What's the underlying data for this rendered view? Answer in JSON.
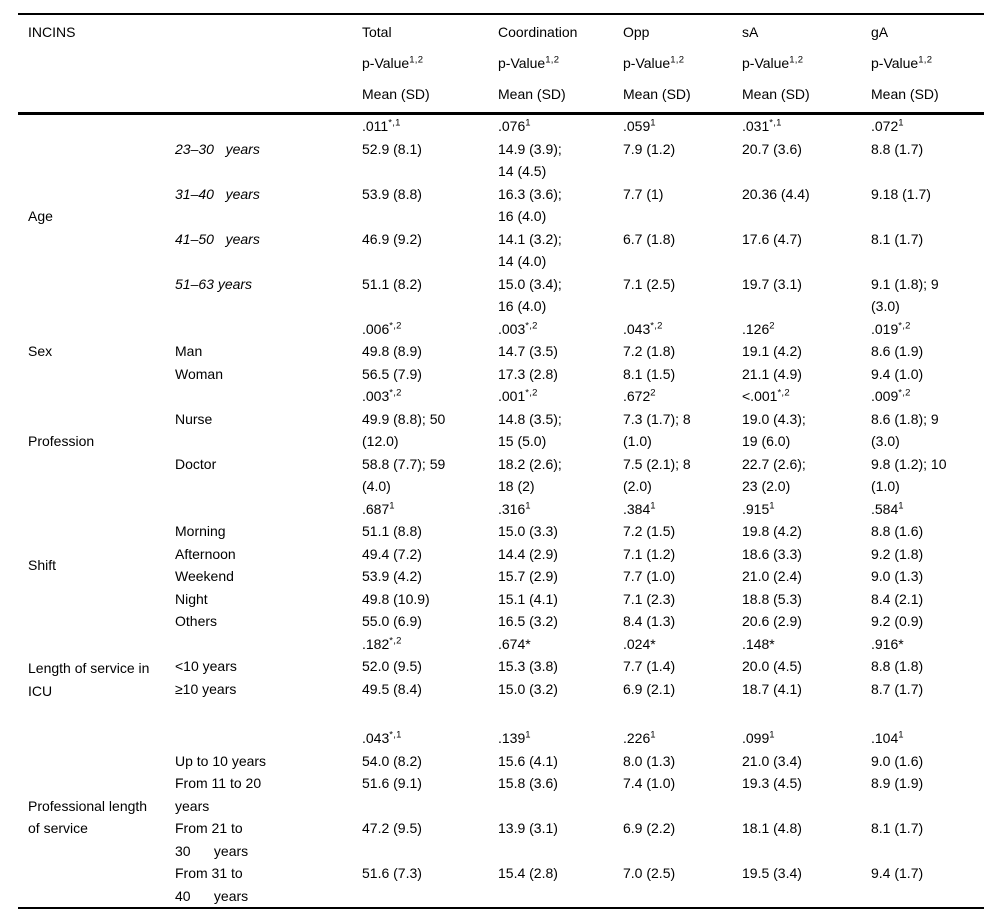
{
  "table": {
    "corner_label": "INCINS",
    "header": {
      "p_value_label": "p-Value",
      "p_value_sup": "1,2",
      "mean_label": "Mean (SD)"
    },
    "columns": [
      {
        "label": "Total"
      },
      {
        "label": "Coordination"
      },
      {
        "label": "Opp"
      },
      {
        "label": "sA"
      },
      {
        "label": "gA"
      }
    ],
    "groups": [
      {
        "label": "Age",
        "rows": [
          {
            "type": "p",
            "pcells": [
              {
                "v": ".011",
                "sup": "*,1"
              },
              {
                "v": ".076",
                "sup": "1"
              },
              {
                "v": ".059",
                "sup": "1"
              },
              {
                "v": ".031",
                "sup": "*,1"
              },
              {
                "v": ".072",
                "sup": "1"
              }
            ]
          },
          {
            "type": "data",
            "italic": true,
            "label": "23–30   years",
            "cells": [
              "52.9 (8.1)",
              "14.9 (3.9);\n14 (4.5)",
              "7.9 (1.2)",
              "20.7 (3.6)",
              "8.8 (1.7)"
            ]
          },
          {
            "type": "data",
            "italic": true,
            "label": "31–40   years",
            "cells": [
              "53.9 (8.8)",
              "16.3 (3.6);\n16 (4.0)",
              "7.7 (1)",
              "20.36 (4.4)",
              "9.18 (1.7)"
            ]
          },
          {
            "type": "data",
            "italic": true,
            "label": "41–50   years",
            "cells": [
              "46.9 (9.2)",
              "14.1 (3.2);\n14 (4.0)",
              "6.7 (1.8)",
              "17.6 (4.7)",
              "8.1 (1.7)"
            ]
          },
          {
            "type": "data",
            "italic": true,
            "label": "51–63 years",
            "cells": [
              "51.1 (8.2)",
              "15.0 (3.4);\n16 (4.0)",
              "7.1 (2.5)",
              "19.7 (3.1)",
              "9.1 (1.8); 9\n(3.0)"
            ]
          }
        ]
      },
      {
        "label": "Sex",
        "rows": [
          {
            "type": "p",
            "pcells": [
              {
                "v": ".006",
                "sup": "*,2"
              },
              {
                "v": ".003",
                "sup": "*,2"
              },
              {
                "v": ".043",
                "sup": "*,2"
              },
              {
                "v": ".126",
                "sup": "2"
              },
              {
                "v": ".019",
                "sup": "*,2"
              }
            ]
          },
          {
            "type": "data",
            "label": "Man",
            "cells": [
              "49.8 (8.9)",
              "14.7 (3.5)",
              "7.2 (1.8)",
              "19.1 (4.2)",
              "8.6 (1.9)"
            ]
          },
          {
            "type": "data",
            "label": "Woman",
            "cells": [
              "56.5 (7.9)",
              "17.3 (2.8)",
              "8.1 (1.5)",
              "21.1 (4.9)",
              "9.4 (1.0)"
            ]
          }
        ]
      },
      {
        "label": "Profession",
        "rows": [
          {
            "type": "p",
            "pcells": [
              {
                "v": ".003",
                "sup": "*,2"
              },
              {
                "v": ".001",
                "sup": "*,2"
              },
              {
                "v": ".672",
                "sup": "2"
              },
              {
                "v": "<.001",
                "sup": "*,2"
              },
              {
                "v": ".009",
                "sup": "*,2"
              }
            ]
          },
          {
            "type": "data",
            "label": "Nurse",
            "cells": [
              "49.9 (8.8); 50\n(12.0)",
              "14.8 (3.5);\n15 (5.0)",
              "7.3 (1.7); 8\n(1.0)",
              "19.0 (4.3);\n19 (6.0)",
              "8.6 (1.8); 9\n(3.0)"
            ]
          },
          {
            "type": "data",
            "label": "Doctor",
            "cells": [
              "58.8 (7.7); 59\n(4.0)",
              "18.2 (2.6);\n18 (2)",
              "7.5 (2.1); 8\n(2.0)",
              "22.7 (2.6);\n23 (2.0)",
              "9.8 (1.2); 10\n(1.0)"
            ]
          }
        ]
      },
      {
        "label": "Shift",
        "rows": [
          {
            "type": "p",
            "pcells": [
              {
                "v": ".687",
                "sup": "1"
              },
              {
                "v": ".316",
                "sup": "1"
              },
              {
                "v": ".384",
                "sup": "1"
              },
              {
                "v": ".915",
                "sup": "1"
              },
              {
                "v": ".584",
                "sup": "1"
              }
            ]
          },
          {
            "type": "data",
            "label": "Morning",
            "cells": [
              "51.1 (8.8)",
              "15.0 (3.3)",
              "7.2 (1.5)",
              "19.8 (4.2)",
              "8.8 (1.6)"
            ]
          },
          {
            "type": "data",
            "label": "Afternoon",
            "cells": [
              "49.4 (7.2)",
              "14.4 (2.9)",
              "7.1 (1.2)",
              "18.6 (3.3)",
              "9.2 (1.8)"
            ]
          },
          {
            "type": "data",
            "label": "Weekend",
            "cells": [
              "53.9 (4.2)",
              "15.7 (2.9)",
              "7.7 (1.0)",
              "21.0 (2.4)",
              "9.0 (1.3)"
            ]
          },
          {
            "type": "data",
            "label": "Night",
            "cells": [
              "49.8 (10.9)",
              "15.1 (4.1)",
              "7.1 (2.3)",
              "18.8 (5.3)",
              "8.4 (2.1)"
            ]
          },
          {
            "type": "data",
            "label": "Others",
            "cells": [
              "55.0 (6.9)",
              "16.5 (3.2)",
              "8.4 (1.3)",
              "20.6 (2.9)",
              "9.2 (0.9)"
            ]
          }
        ]
      },
      {
        "label": "Length of service in\nICU",
        "rows": [
          {
            "type": "p",
            "pcells": [
              {
                "v": ".182",
                "sup": "*,2"
              },
              {
                "v": ".674*",
                "sup": ""
              },
              {
                "v": ".024*",
                "sup": ""
              },
              {
                "v": ".148*",
                "sup": ""
              },
              {
                "v": ".916*",
                "sup": ""
              }
            ]
          },
          {
            "type": "data",
            "label": "<10 years",
            "cells": [
              "52.0 (9.5)",
              "15.3 (3.8)",
              "7.7 (1.4)",
              "20.0 (4.5)",
              "8.8 (1.8)"
            ]
          },
          {
            "type": "data",
            "label": "≥10 years",
            "cells": [
              "49.5 (8.4)",
              "15.0 (3.2)",
              "6.9 (2.1)",
              "18.7 (4.1)",
              "8.7 (1.7)"
            ]
          },
          {
            "type": "spacer"
          }
        ]
      },
      {
        "label": "Professional length\nof service",
        "rows": [
          {
            "type": "p",
            "pcells": [
              {
                "v": ".043",
                "sup": "*,1"
              },
              {
                "v": ".139",
                "sup": "1"
              },
              {
                "v": ".226",
                "sup": "1"
              },
              {
                "v": ".099",
                "sup": "1"
              },
              {
                "v": ".104",
                "sup": "1"
              }
            ]
          },
          {
            "type": "data",
            "label": "Up to 10 years",
            "cells": [
              "54.0 (8.2)",
              "15.6 (4.1)",
              "8.0 (1.3)",
              "21.0 (3.4)",
              "9.0 (1.6)"
            ]
          },
          {
            "type": "data",
            "label": "From 11 to 20\nyears",
            "cells": [
              "51.6 (9.1)",
              "15.8 (3.6)",
              "7.4 (1.0)",
              "19.3 (4.5)",
              "8.9 (1.9)"
            ]
          },
          {
            "type": "data",
            "label": "From 21 to\n30      years",
            "cells": [
              "47.2 (9.5)",
              "13.9 (3.1)",
              "6.9 (2.2)",
              "18.1 (4.8)",
              "8.1 (1.7)"
            ]
          },
          {
            "type": "data",
            "label": "From 31 to\n40      years",
            "cells": [
              "51.6 (7.3)",
              "15.4 (2.8)",
              "7.0 (2.5)",
              "19.5 (3.4)",
              "9.4 (1.7)"
            ]
          }
        ]
      }
    ]
  }
}
